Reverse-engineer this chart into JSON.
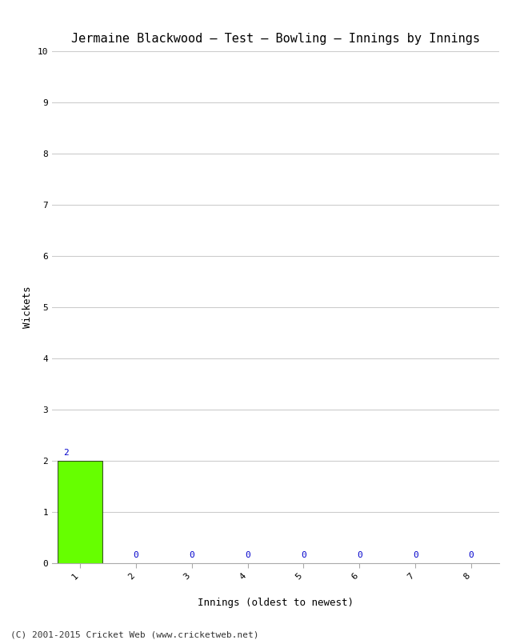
{
  "title": "Jermaine Blackwood – Test – Bowling – Innings by Innings",
  "xlabel": "Innings (oldest to newest)",
  "ylabel": "Wickets",
  "innings": [
    1,
    2,
    3,
    4,
    5,
    6,
    7,
    8
  ],
  "wickets": [
    2,
    0,
    0,
    0,
    0,
    0,
    0,
    0
  ],
  "bar_color": "#66ff00",
  "bar_edge_color": "#000000",
  "zero_color": "#0000cc",
  "ylim": [
    0,
    10
  ],
  "yticks": [
    0,
    1,
    2,
    3,
    4,
    5,
    6,
    7,
    8,
    9,
    10
  ],
  "background_color": "#ffffff",
  "grid_color": "#cccccc",
  "title_fontsize": 11,
  "label_fontsize": 9,
  "tick_fontsize": 8,
  "footer": "(C) 2001-2015 Cricket Web (www.cricketweb.net)",
  "footer_fontsize": 8
}
